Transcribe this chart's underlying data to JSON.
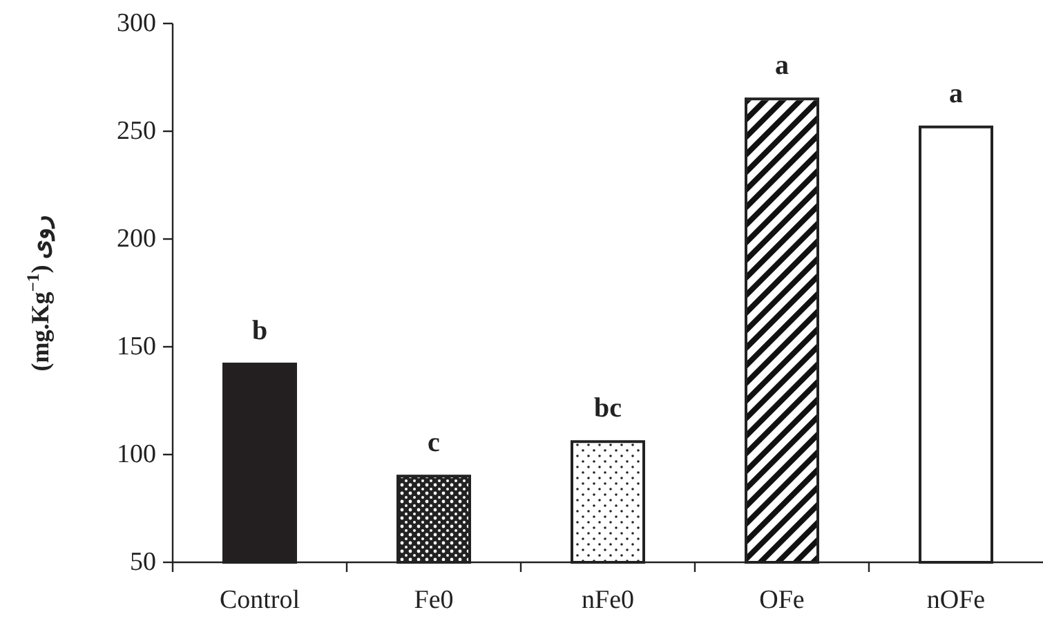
{
  "chart_data": {
    "type": "bar",
    "ylabel": "(mg.Kg$^{−1}$) روی",
    "categories": [
      "Control",
      "Fe0",
      "nFe0",
      "OFe",
      "nOFe"
    ],
    "values": [
      142,
      90,
      106,
      265,
      252
    ],
    "colors": [
      "#231f20",
      "#222222",
      "#ffffff",
      "#ffffff",
      "#ffffff"
    ],
    "ylim": [
      50,
      300
    ],
    "yticks": [
      50,
      100,
      150,
      200,
      250,
      300
    ],
    "grid": false,
    "annotations": [
      {
        "text": "b",
        "x": "Control",
        "y": 142
      },
      {
        "text": "c",
        "x": "Fe0",
        "y": 90
      },
      {
        "text": "bc",
        "x": "nFe0",
        "y": 106
      },
      {
        "text": "a",
        "x": "OFe",
        "y": 265
      },
      {
        "text": "a",
        "x": "nOFe",
        "y": 252
      }
    ]
  }
}
